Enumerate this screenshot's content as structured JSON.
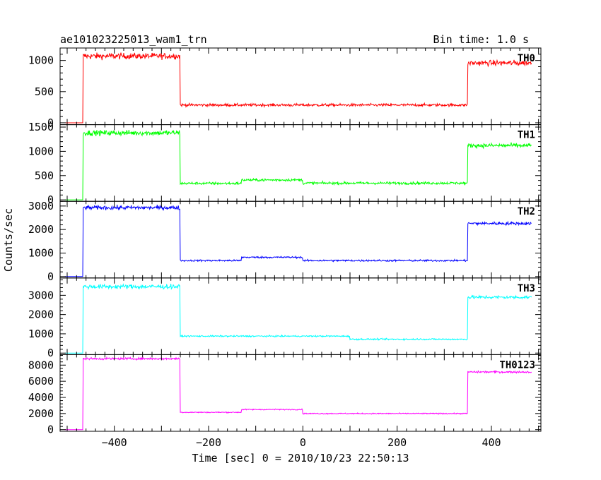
{
  "header": {
    "title": "ae101023225013_wam1_trn",
    "bin_label": "Bin time: 1.0 s"
  },
  "axes": {
    "xlabel": "Time [sec] 0 = 2010/10/23 22:50:13",
    "ylabel": "Counts/sec"
  },
  "chart_data": {
    "type": "line",
    "shared_x": {
      "xlim": [
        -515,
        505
      ],
      "ticks": [
        -400,
        -200,
        0,
        200,
        400
      ],
      "tick_labels": [
        "−400",
        "−200",
        "0",
        "200",
        "400"
      ],
      "range": [
        -505,
        485
      ]
    },
    "panels": [
      {
        "series_label": "TH0",
        "color": "#ff0000",
        "ylim": [
          -30,
          1200
        ],
        "ticks": [
          0,
          500,
          1000
        ],
        "tick_labels": [
          "0",
          "500",
          "1000"
        ],
        "segments": [
          {
            "from": -505,
            "to": -466,
            "level": 0
          },
          {
            "from": -466,
            "to": -260,
            "level": 1070,
            "noise": 45
          },
          {
            "from": -260,
            "to": 350,
            "level": 285,
            "noise": 20
          },
          {
            "from": 350,
            "to": 485,
            "level": 960,
            "noise": 40
          }
        ]
      },
      {
        "series_label": "TH1",
        "color": "#00ff00",
        "ylim": [
          -30,
          1550
        ],
        "ticks": [
          0,
          500,
          1000,
          1500
        ],
        "tick_labels": [
          "0",
          "500",
          "1000",
          "1500"
        ],
        "segments": [
          {
            "from": -505,
            "to": -466,
            "level": 0
          },
          {
            "from": -466,
            "to": -260,
            "level": 1380,
            "noise": 50
          },
          {
            "from": -260,
            "to": -130,
            "level": 340,
            "noise": 25
          },
          {
            "from": -130,
            "to": 0,
            "level": 410,
            "noise": 25
          },
          {
            "from": 0,
            "to": 350,
            "level": 345,
            "noise": 25
          },
          {
            "from": 350,
            "to": 485,
            "level": 1120,
            "noise": 40
          }
        ]
      },
      {
        "series_label": "TH2",
        "color": "#0000ff",
        "ylim": [
          -60,
          3200
        ],
        "ticks": [
          0,
          1000,
          2000,
          3000
        ],
        "tick_labels": [
          "0",
          "1000",
          "2000",
          "3000"
        ],
        "segments": [
          {
            "from": -505,
            "to": -466,
            "level": 0
          },
          {
            "from": -466,
            "to": -260,
            "level": 2930,
            "noise": 80
          },
          {
            "from": -260,
            "to": -130,
            "level": 680,
            "noise": 35
          },
          {
            "from": -130,
            "to": 0,
            "level": 820,
            "noise": 35
          },
          {
            "from": 0,
            "to": 350,
            "level": 680,
            "noise": 35
          },
          {
            "from": 350,
            "to": 485,
            "level": 2260,
            "noise": 60
          }
        ]
      },
      {
        "series_label": "TH3",
        "color": "#00ffff",
        "ylim": [
          -80,
          3900
        ],
        "ticks": [
          0,
          1000,
          2000,
          3000
        ],
        "tick_labels": [
          "0",
          "1000",
          "2000",
          "3000"
        ],
        "segments": [
          {
            "from": -505,
            "to": -466,
            "level": 0
          },
          {
            "from": -466,
            "to": -260,
            "level": 3450,
            "noise": 110
          },
          {
            "from": -260,
            "to": 100,
            "level": 880,
            "noise": 35
          },
          {
            "from": 100,
            "to": 350,
            "level": 720,
            "noise": 35
          },
          {
            "from": 350,
            "to": 485,
            "level": 2900,
            "noise": 80
          }
        ]
      },
      {
        "series_label": "TH0123",
        "color": "#ff00ff",
        "ylim": [
          -200,
          9300
        ],
        "ticks": [
          0,
          2000,
          4000,
          6000,
          8000
        ],
        "tick_labels": [
          "0",
          "2000",
          "4000",
          "6000",
          "8000"
        ],
        "segments": [
          {
            "from": -505,
            "to": -466,
            "level": 0
          },
          {
            "from": -466,
            "to": -260,
            "level": 8800,
            "noise": 120
          },
          {
            "from": -260,
            "to": -130,
            "level": 2150,
            "noise": 60
          },
          {
            "from": -130,
            "to": 0,
            "level": 2500,
            "noise": 60
          },
          {
            "from": 0,
            "to": 350,
            "level": 2000,
            "noise": 60
          },
          {
            "from": 350,
            "to": 485,
            "level": 7150,
            "noise": 110
          }
        ]
      }
    ]
  }
}
